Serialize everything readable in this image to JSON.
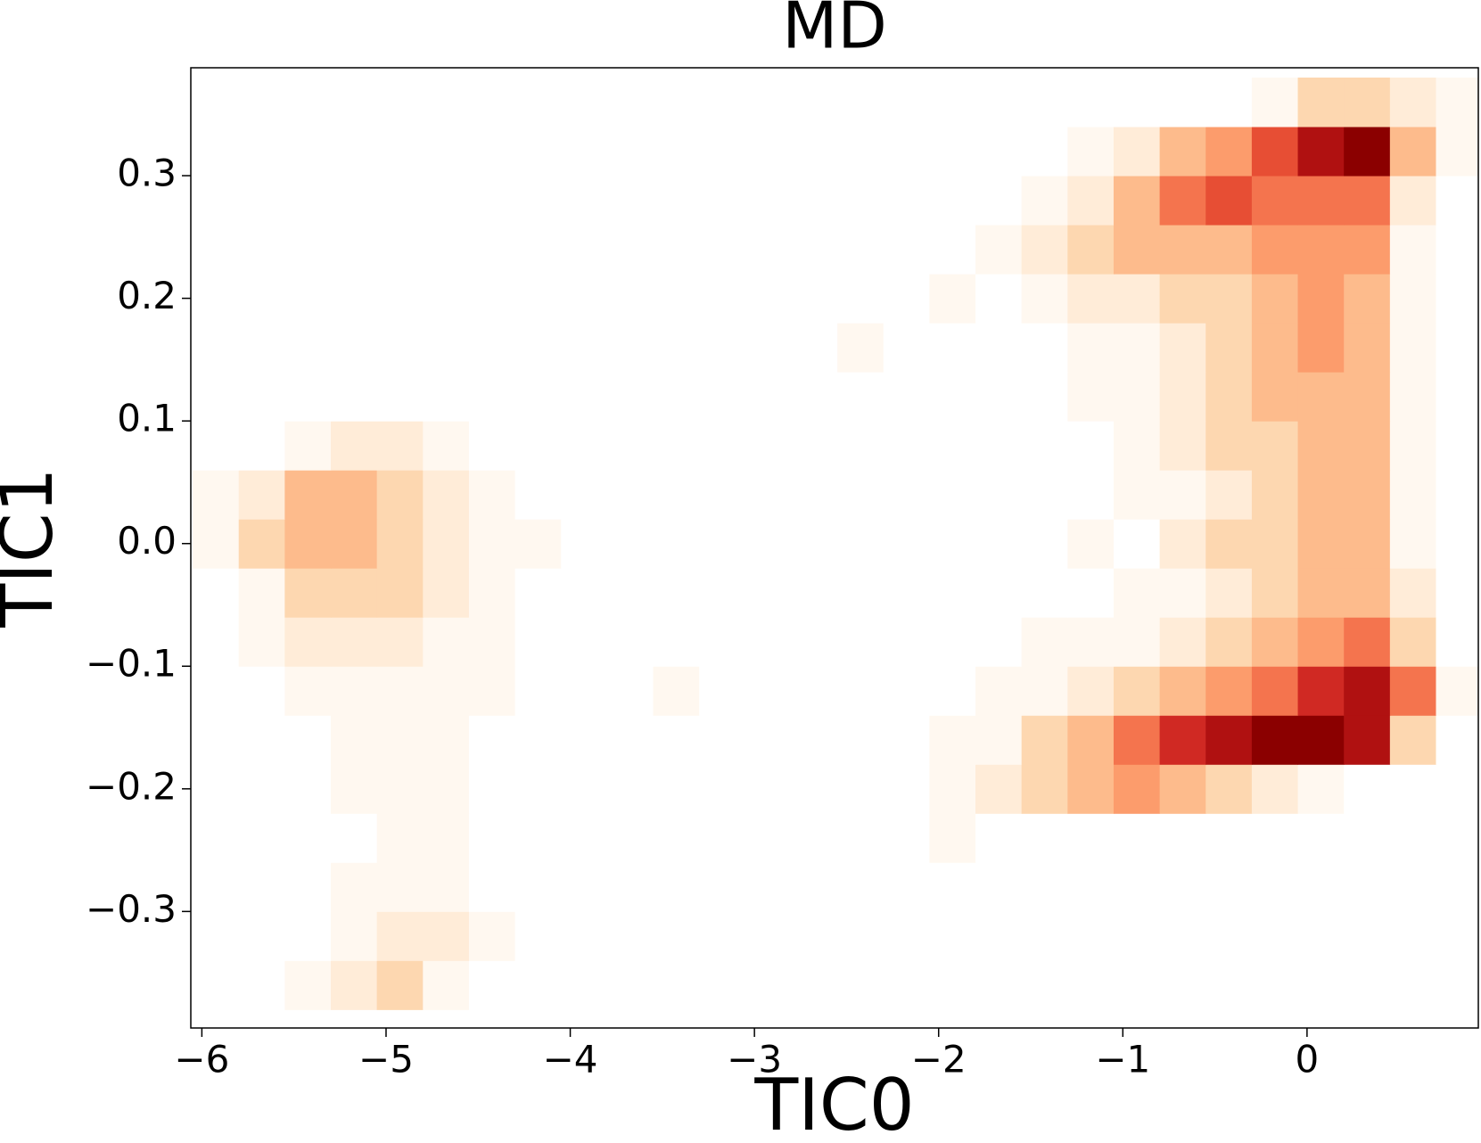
{
  "chart_data": {
    "type": "heatmap",
    "title": "MD",
    "xlabel": "TIC0",
    "ylabel": "TIC1",
    "xlim": [
      -6.06,
      0.93
    ],
    "ylim": [
      -0.395,
      0.388
    ],
    "xticks": [
      {
        "value": -6,
        "label": "−6"
      },
      {
        "value": -5,
        "label": "−5"
      },
      {
        "value": -4,
        "label": "−4"
      },
      {
        "value": -3,
        "label": "−3"
      },
      {
        "value": -2,
        "label": "−2"
      },
      {
        "value": -1,
        "label": "−1"
      },
      0
    ],
    "yticks": [
      {
        "value": -0.3,
        "label": "−0.3"
      },
      {
        "value": -0.2,
        "label": "−0.2"
      },
      {
        "value": -0.1,
        "label": "−0.1"
      },
      {
        "value": 0,
        "label": "0.0"
      },
      0.1,
      0.2,
      0.3
    ],
    "colorscale": [
      "#ffffff",
      "#fff3e6",
      "#fdd0a2",
      "#fc9c6c",
      "#ef5a3a",
      "#c81d1d",
      "#8b0000"
    ],
    "xbins": [
      -6.05,
      -5.8,
      -5.55,
      -5.3,
      -5.05,
      -4.8,
      -4.55,
      -4.3,
      -4.05,
      -3.8,
      -3.55,
      -3.3,
      -3.05,
      -2.8,
      -2.55,
      -2.3,
      -2.05,
      -1.8,
      -1.55,
      -1.3,
      -1.05,
      -0.8,
      -0.55,
      -0.3,
      -0.05,
      0.2,
      0.45,
      0.7,
      0.95
    ],
    "ybins": [
      -0.38,
      -0.34,
      -0.3,
      -0.26,
      -0.22,
      -0.18,
      -0.14,
      -0.1,
      -0.06,
      -0.02,
      0.02,
      0.06,
      0.1,
      0.14,
      0.18,
      0.22,
      0.26,
      0.3,
      0.34,
      0.38
    ],
    "z": [
      [
        0,
        0,
        1,
        2,
        3,
        1,
        0,
        0,
        0,
        0,
        0,
        0,
        0,
        0,
        0,
        0,
        0,
        0,
        0,
        0,
        0,
        0,
        0,
        0,
        0,
        0,
        0,
        0
      ],
      [
        0,
        0,
        0,
        1,
        2,
        2,
        1,
        0,
        0,
        0,
        0,
        0,
        0,
        0,
        0,
        0,
        0,
        0,
        0,
        0,
        0,
        0,
        0,
        0,
        0,
        0,
        0,
        0
      ],
      [
        0,
        0,
        0,
        1,
        1,
        1,
        0,
        0,
        0,
        0,
        0,
        0,
        0,
        0,
        0,
        0,
        0,
        0,
        0,
        0,
        0,
        0,
        0,
        0,
        0,
        0,
        0,
        0
      ],
      [
        0,
        0,
        0,
        0,
        1,
        1,
        0,
        0,
        0,
        0,
        0,
        0,
        0,
        0,
        0,
        0,
        1,
        0,
        0,
        0,
        0,
        0,
        0,
        0,
        0,
        0,
        0,
        0
      ],
      [
        0,
        0,
        0,
        1,
        1,
        1,
        0,
        0,
        0,
        0,
        0,
        0,
        0,
        0,
        0,
        0,
        1,
        2,
        3,
        4,
        5,
        4,
        3,
        2,
        1,
        0,
        0,
        0
      ],
      [
        0,
        0,
        0,
        1,
        1,
        1,
        0,
        0,
        0,
        0,
        0,
        0,
        0,
        0,
        0,
        0,
        1,
        1,
        3,
        4,
        6,
        8,
        9,
        10,
        10,
        9,
        3,
        0
      ],
      [
        0,
        0,
        1,
        1,
        1,
        1,
        1,
        0,
        0,
        0,
        1,
        0,
        0,
        0,
        0,
        0,
        0,
        1,
        1,
        2,
        3,
        4,
        5,
        6,
        8,
        9,
        6,
        1
      ],
      [
        0,
        1,
        2,
        2,
        2,
        1,
        1,
        0,
        0,
        0,
        0,
        0,
        0,
        0,
        0,
        0,
        0,
        0,
        1,
        1,
        1,
        2,
        3,
        4,
        5,
        6,
        3,
        0
      ],
      [
        0,
        1,
        3,
        3,
        3,
        2,
        1,
        0,
        0,
        0,
        0,
        0,
        0,
        0,
        0,
        0,
        0,
        0,
        0,
        0,
        1,
        1,
        2,
        3,
        4,
        4,
        2,
        0
      ],
      [
        1,
        3,
        4,
        4,
        3,
        2,
        1,
        1,
        0,
        0,
        0,
        0,
        0,
        0,
        0,
        0,
        0,
        0,
        0,
        1,
        0,
        2,
        3,
        3,
        4,
        4,
        1,
        0
      ],
      [
        1,
        2,
        4,
        4,
        3,
        2,
        1,
        0,
        0,
        0,
        0,
        0,
        0,
        0,
        0,
        0,
        0,
        0,
        0,
        0,
        1,
        1,
        2,
        3,
        4,
        4,
        1,
        0
      ],
      [
        0,
        0,
        1,
        2,
        2,
        1,
        0,
        0,
        0,
        0,
        0,
        0,
        0,
        0,
        0,
        0,
        0,
        0,
        0,
        0,
        1,
        2,
        3,
        3,
        4,
        4,
        1,
        0
      ],
      [
        0,
        0,
        0,
        0,
        0,
        0,
        0,
        0,
        0,
        0,
        0,
        0,
        0,
        0,
        0,
        0,
        0,
        0,
        0,
        1,
        1,
        2,
        3,
        4,
        4,
        4,
        1,
        0
      ],
      [
        0,
        0,
        0,
        0,
        0,
        0,
        0,
        0,
        0,
        0,
        0,
        0,
        0,
        0,
        1,
        0,
        0,
        0,
        0,
        1,
        1,
        2,
        3,
        4,
        5,
        4,
        1,
        0
      ],
      [
        0,
        0,
        0,
        0,
        0,
        0,
        0,
        0,
        0,
        0,
        0,
        0,
        0,
        0,
        0,
        0,
        1,
        0,
        1,
        2,
        2,
        3,
        3,
        4,
        5,
        4,
        1,
        0
      ],
      [
        0,
        0,
        0,
        0,
        0,
        0,
        0,
        0,
        0,
        0,
        0,
        0,
        0,
        0,
        0,
        0,
        0,
        1,
        2,
        3,
        4,
        4,
        4,
        5,
        5,
        5,
        1,
        0
      ],
      [
        0,
        0,
        0,
        0,
        0,
        0,
        0,
        0,
        0,
        0,
        0,
        0,
        0,
        0,
        0,
        0,
        0,
        0,
        1,
        2,
        4,
        6,
        7,
        6,
        6,
        6,
        2,
        0
      ],
      [
        0,
        0,
        0,
        0,
        0,
        0,
        0,
        0,
        0,
        0,
        0,
        0,
        0,
        0,
        0,
        0,
        0,
        0,
        0,
        1,
        2,
        4,
        5,
        7,
        9,
        10,
        4,
        1
      ],
      [
        0,
        0,
        0,
        0,
        0,
        0,
        0,
        0,
        0,
        0,
        0,
        0,
        0,
        0,
        0,
        0,
        0,
        0,
        0,
        0,
        0,
        0,
        0,
        1,
        3,
        3,
        2,
        1
      ]
    ]
  }
}
